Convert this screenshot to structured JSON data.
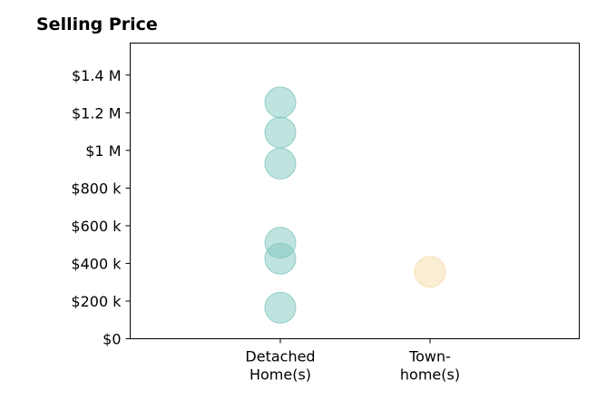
{
  "chart_data": {
    "type": "scatter",
    "title": "Selling Price",
    "categories": [
      "Detached\nHome(s)",
      "Town-\nhome(s)"
    ],
    "y_ticks": [
      "$0",
      "$200 k",
      "$400 k",
      "$600 k",
      "$800 k",
      "$1 M",
      "$1.2 M",
      "$1.4 M"
    ],
    "y_tick_values": [
      0,
      200000,
      400000,
      600000,
      800000,
      1000000,
      1200000,
      1400000
    ],
    "ylim": [
      0,
      1570000
    ],
    "grid": false,
    "series": [
      {
        "category": "Detached\nHome(s)",
        "color": "#7fc8be",
        "values": [
          1255000,
          1095000,
          930000,
          510000,
          425000,
          165000
        ]
      },
      {
        "category": "Town-\nhome(s)",
        "color": "#f3dca6",
        "values": [
          355000
        ]
      }
    ]
  }
}
